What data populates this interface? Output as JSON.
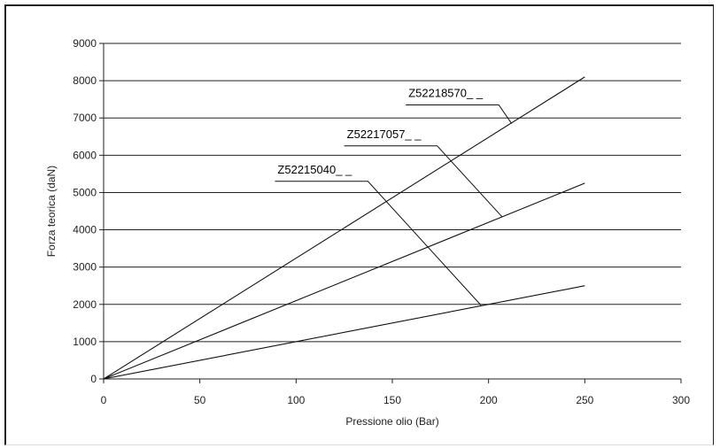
{
  "chart_data": {
    "type": "line",
    "title": "",
    "xlabel": "Pressione olio (Bar)",
    "ylabel": "Forza teorica (daN)",
    "xlim": [
      0,
      300
    ],
    "ylim": [
      0,
      9000
    ],
    "x_ticks": [
      0,
      50,
      100,
      150,
      200,
      250,
      300
    ],
    "y_ticks": [
      0,
      1000,
      2000,
      3000,
      4000,
      5000,
      6000,
      7000,
      8000,
      9000
    ],
    "grid": "horizontal",
    "series": [
      {
        "name": "Z52218570_ _",
        "x": [
          0,
          250
        ],
        "y": [
          0,
          8100
        ],
        "label_at": [
          212,
          6850
        ],
        "label_from": [
          157,
          7350
        ]
      },
      {
        "name": "Z52217057_ _",
        "x": [
          0,
          250
        ],
        "y": [
          0,
          5250
        ],
        "label_at": [
          207,
          4350
        ],
        "label_from": [
          125,
          6250
        ]
      },
      {
        "name": "Z52215040_ _",
        "x": [
          0,
          250
        ],
        "y": [
          0,
          2500
        ],
        "label_at": [
          196,
          1980
        ],
        "label_from": [
          89,
          5300
        ]
      }
    ]
  }
}
